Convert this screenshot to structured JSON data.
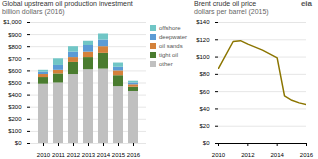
{
  "chart_data": [
    {
      "type": "bar",
      "stacked": true,
      "title": "Global upstream oil production investment",
      "subtitle": "billion dollars (2016)",
      "categories": [
        "2010",
        "2011",
        "2012",
        "2013",
        "2014",
        "2015",
        "2016"
      ],
      "series": [
        {
          "name": "other",
          "color": "#c0c0c0",
          "values": [
            490,
            500,
            570,
            610,
            615,
            470,
            430
          ]
        },
        {
          "name": "tight oil",
          "color": "#4a7c2f",
          "values": [
            55,
            75,
            100,
            100,
            130,
            90,
            35
          ]
        },
        {
          "name": "oil sands",
          "color": "#d4813a",
          "values": [
            25,
            30,
            40,
            45,
            55,
            40,
            20
          ]
        },
        {
          "name": "deepwater",
          "color": "#5b9bd5",
          "values": [
            20,
            40,
            45,
            55,
            55,
            30,
            15
          ]
        },
        {
          "name": "offshore",
          "color": "#70c6c6",
          "values": [
            15,
            55,
            45,
            35,
            50,
            35,
            15
          ]
        }
      ],
      "ylim": [
        0,
        1000
      ],
      "yticks": [
        {
          "value": 0,
          "label": "$0"
        },
        {
          "value": 100,
          "label": "$100"
        },
        {
          "value": 200,
          "label": "$200"
        },
        {
          "value": 300,
          "label": "$300"
        },
        {
          "value": 400,
          "label": "$400"
        },
        {
          "value": 500,
          "label": "$500"
        },
        {
          "value": 600,
          "label": "$600"
        },
        {
          "value": 700,
          "label": "$700"
        },
        {
          "value": 800,
          "label": "$800"
        },
        {
          "value": 900,
          "label": "$900"
        },
        {
          "value": 1000,
          "label": "$1,000"
        }
      ],
      "grid": true,
      "legend": "right"
    },
    {
      "type": "line",
      "title": "Brent crude oil price",
      "subtitle": "dollars per barrel (2015)",
      "x": [
        2010,
        2011,
        2011.5,
        2012,
        2013,
        2014,
        2014.5,
        2015,
        2015.5,
        2016
      ],
      "values": [
        87,
        118,
        119,
        115,
        108,
        99,
        55,
        50,
        47,
        45
      ],
      "color": "#8b7500",
      "xlim": [
        2010,
        2016
      ],
      "xticks": [
        2010,
        2012,
        2014,
        2016
      ],
      "ylim": [
        0,
        140
      ],
      "yticks": [
        {
          "value": 0,
          "label": "$0"
        },
        {
          "value": 20,
          "label": "$20"
        },
        {
          "value": 40,
          "label": "$40"
        },
        {
          "value": 60,
          "label": "$60"
        },
        {
          "value": 80,
          "label": "$80"
        },
        {
          "value": 100,
          "label": "$100"
        },
        {
          "value": 120,
          "label": "$120"
        },
        {
          "value": 140,
          "label": "$140"
        }
      ],
      "grid": true,
      "annotations": [
        {
          "text": "eia"
        }
      ]
    }
  ]
}
